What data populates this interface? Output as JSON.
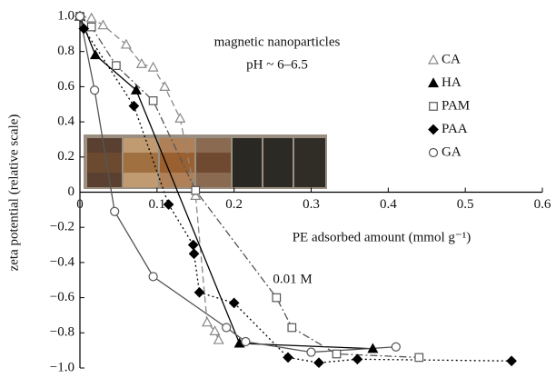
{
  "chart_data": {
    "type": "scatter",
    "annotations": [
      "magnetic nanoparticles",
      "pH ~ 6–6.5",
      "0.01 M"
    ],
    "xlabel": "PE adsorbed amount (mmol g⁻¹)",
    "ylabel": "zeta potential (relative scale)",
    "xlim": [
      0,
      0.6
    ],
    "ylim": [
      -1,
      1
    ],
    "xticks": [
      0,
      0.1,
      0.2,
      0.3,
      0.4,
      0.5,
      0.6
    ],
    "yticks": [
      {
        "value": 1,
        "label": "1.0"
      },
      0.8,
      0.6,
      0.4,
      0.2,
      0,
      {
        "value": -0.2,
        "label": "−0.2"
      },
      {
        "value": -0.4,
        "label": "−0.4"
      },
      {
        "value": -0.6,
        "label": "−0.6"
      },
      {
        "value": -0.8,
        "label": "−0.8"
      },
      {
        "value": -1,
        "label": "−1.0"
      }
    ],
    "series": [
      {
        "name": "CA",
        "color": "#888888",
        "marker": "triangle",
        "filled": false,
        "linestyle": "dashed",
        "x": [
          0,
          0.015,
          0.03,
          0.06,
          0.08,
          0.095,
          0.11,
          0.13,
          0.15,
          0.165,
          0.175,
          0.18
        ],
        "values": [
          1,
          0.99,
          0.95,
          0.84,
          0.73,
          0.71,
          0.6,
          0.42,
          -0.02,
          -0.74,
          -0.79,
          -0.84
        ]
      },
      {
        "name": "HA",
        "color": "#000000",
        "marker": "triangle",
        "filled": true,
        "linestyle": "solid",
        "x": [
          0,
          0.02,
          0.073,
          0.207,
          0.38
        ],
        "values": [
          1,
          0.78,
          0.58,
          -0.86,
          -0.89
        ]
      },
      {
        "name": "PAM",
        "color": "#555555",
        "marker": "square",
        "filled": false,
        "linestyle": "dashdot",
        "x": [
          0,
          0.015,
          0.047,
          0.095,
          0.15,
          0.255,
          0.275,
          0.333,
          0.44
        ],
        "values": [
          1,
          0.94,
          0.72,
          0.52,
          0.01,
          -0.6,
          -0.77,
          -0.92,
          -0.94
        ]
      },
      {
        "name": "PAA",
        "color": "#000000",
        "marker": "diamond",
        "filled": true,
        "linestyle": "dotted",
        "x": [
          0,
          0.005,
          0.07,
          0.115,
          0.147,
          0.148,
          0.155,
          0.2,
          0.27,
          0.31,
          0.36,
          0.56
        ],
        "values": [
          1,
          0.93,
          0.49,
          -0.07,
          -0.3,
          -0.35,
          -0.57,
          -0.63,
          -0.94,
          -0.97,
          -0.95,
          -0.96
        ]
      },
      {
        "name": "GA",
        "color": "#555555",
        "marker": "circle",
        "filled": false,
        "linestyle": "solid",
        "x": [
          0,
          0.019,
          0.045,
          0.095,
          0.19,
          0.215,
          0.3,
          0.41
        ],
        "values": [
          1,
          0.58,
          -0.11,
          -0.48,
          -0.77,
          -0.85,
          -0.91,
          -0.88
        ]
      }
    ]
  }
}
